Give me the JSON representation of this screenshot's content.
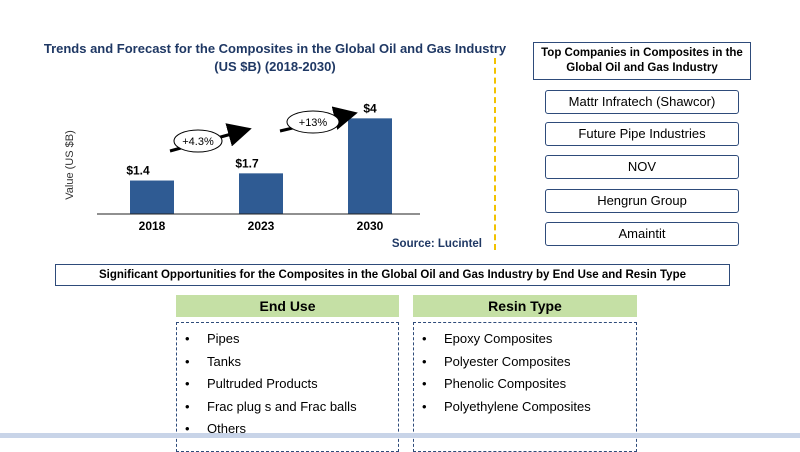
{
  "chart_data": {
    "type": "bar",
    "title": "Trends and Forecast for the Composites in the Global Oil and Gas Industry (US $B) (2018-2030)",
    "categories": [
      "2018",
      "2023",
      "2030"
    ],
    "values": [
      1.4,
      1.7,
      4
    ],
    "value_labels": [
      "$1.4",
      "$1.7",
      "$4"
    ],
    "ylabel": "Value (US $B)",
    "xlabel": "",
    "ylim": [
      0,
      4.6
    ],
    "grid": false,
    "bar_color": "#2f5b93",
    "growth_annotations": [
      {
        "from": "2018",
        "to": "2023",
        "label": "+4.3%"
      },
      {
        "from": "2023",
        "to": "2030",
        "label": "+13%"
      }
    ],
    "source": "Source: Lucintel"
  },
  "companies": {
    "header": "Top Companies in Composites in the Global Oil and Gas Industry",
    "items": [
      "Mattr Infratech (Shawcor)",
      "Future Pipe Industries",
      "NOV",
      "Hengrun Group",
      "Amaintit"
    ]
  },
  "opportunities": {
    "title": "Significant Opportunities for the Composites in the Global Oil and Gas Industry by End Use and Resin Type",
    "end_use": {
      "heading": "End Use",
      "items": [
        "Pipes",
        "Tanks",
        "Pultruded Products",
        "Frac plug s and Frac  balls",
        "Others"
      ]
    },
    "resin_type": {
      "heading": "Resin Type",
      "items": [
        "Epoxy Composites",
        "Polyester Composites",
        "Phenolic Composites",
        "Polyethylene  Composites"
      ]
    }
  },
  "colors": {
    "accent_green": "#c5e0a5",
    "border_blue": "#2e4b7a",
    "divider_yellow": "#f2c200"
  }
}
